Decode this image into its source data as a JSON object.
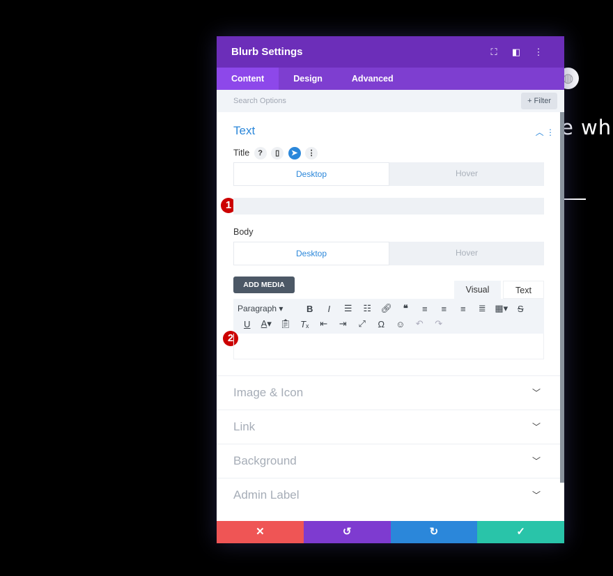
{
  "background": {
    "text": "e wh",
    "globe_icon": "globe-icon"
  },
  "header": {
    "title": "Blurb Settings",
    "icons": [
      "fullscreen-icon",
      "sidebar-toggle-icon",
      "more-icon"
    ]
  },
  "tabs": [
    {
      "label": "Content",
      "active": true
    },
    {
      "label": "Design"
    },
    {
      "label": "Advanced"
    }
  ],
  "search": {
    "placeholder": "Search Options",
    "filter_label": "+ Filter"
  },
  "section": {
    "title": "Text",
    "title_field": {
      "label": "Title",
      "desktop": "Desktop",
      "hover": "Hover",
      "badge": "1"
    },
    "body_field": {
      "label": "Body",
      "desktop": "Desktop",
      "hover": "Hover",
      "badge": "2",
      "add_media": "ADD MEDIA",
      "visual_tab": "Visual",
      "text_tab": "Text",
      "format_select": "Paragraph"
    }
  },
  "accordions": [
    "Image & Icon",
    "Link",
    "Background",
    "Admin Label"
  ],
  "footer": {
    "colors": {
      "cancel": "#ef5555",
      "undo": "#7e3bd0",
      "redo": "#2b87da",
      "save": "#29c4a9"
    }
  }
}
